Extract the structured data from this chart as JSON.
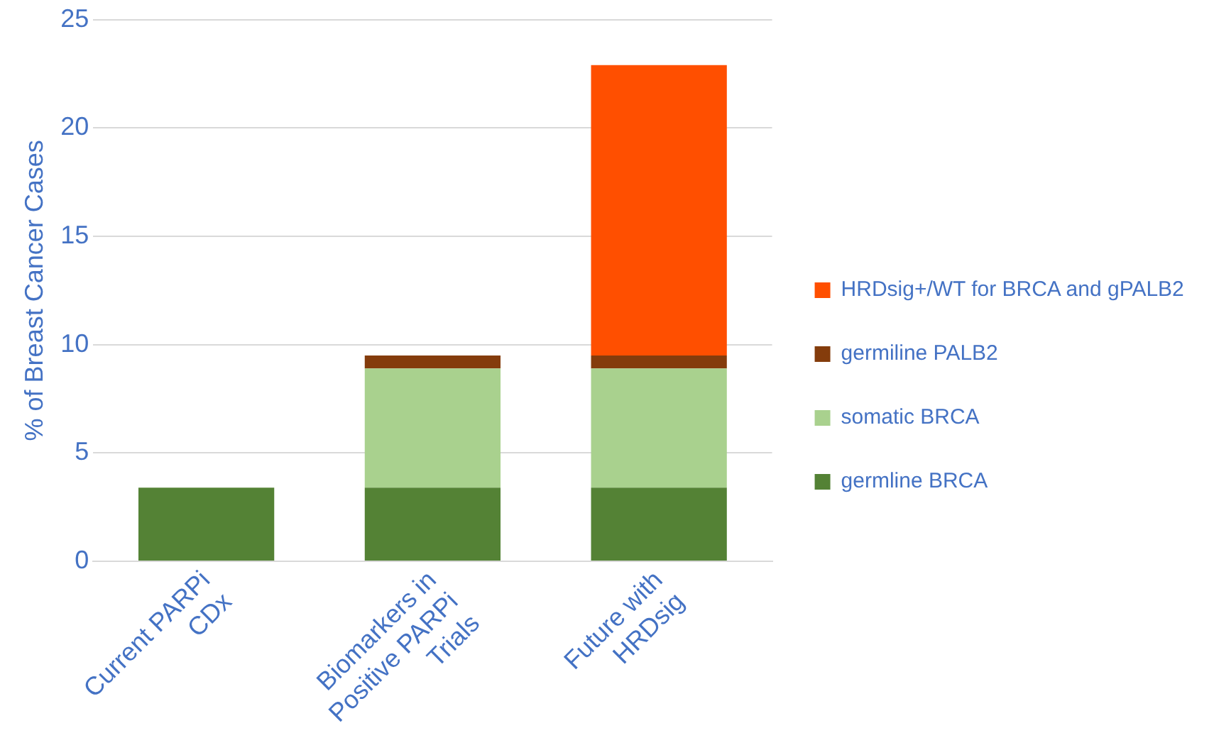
{
  "chart_data": {
    "type": "bar",
    "stacked": true,
    "ylabel": "% of Breast Cancer Cases",
    "categories": [
      "Current PARPi CDx",
      "Biomarkers in Positive PARPi Trials",
      "Future with HRDsig"
    ],
    "series": [
      {
        "name": "germline BRCA",
        "color": "#548235",
        "values": [
          3.4,
          3.4,
          3.4
        ]
      },
      {
        "name": "somatic BRCA",
        "color": "#a9d18e",
        "values": [
          null,
          5.5,
          5.5
        ]
      },
      {
        "name": "germiline PALB2",
        "color": "#843c0c",
        "values": [
          null,
          0.6,
          0.6
        ]
      },
      {
        "name": "HRDsig+/WT for BRCA and gPALB2",
        "color": "#ff4f00",
        "values": [
          null,
          null,
          13.4
        ]
      }
    ],
    "ylim": [
      0,
      25
    ],
    "yticks": [
      0,
      5,
      10,
      15,
      20,
      25
    ],
    "grid": "y",
    "legend": "right"
  }
}
